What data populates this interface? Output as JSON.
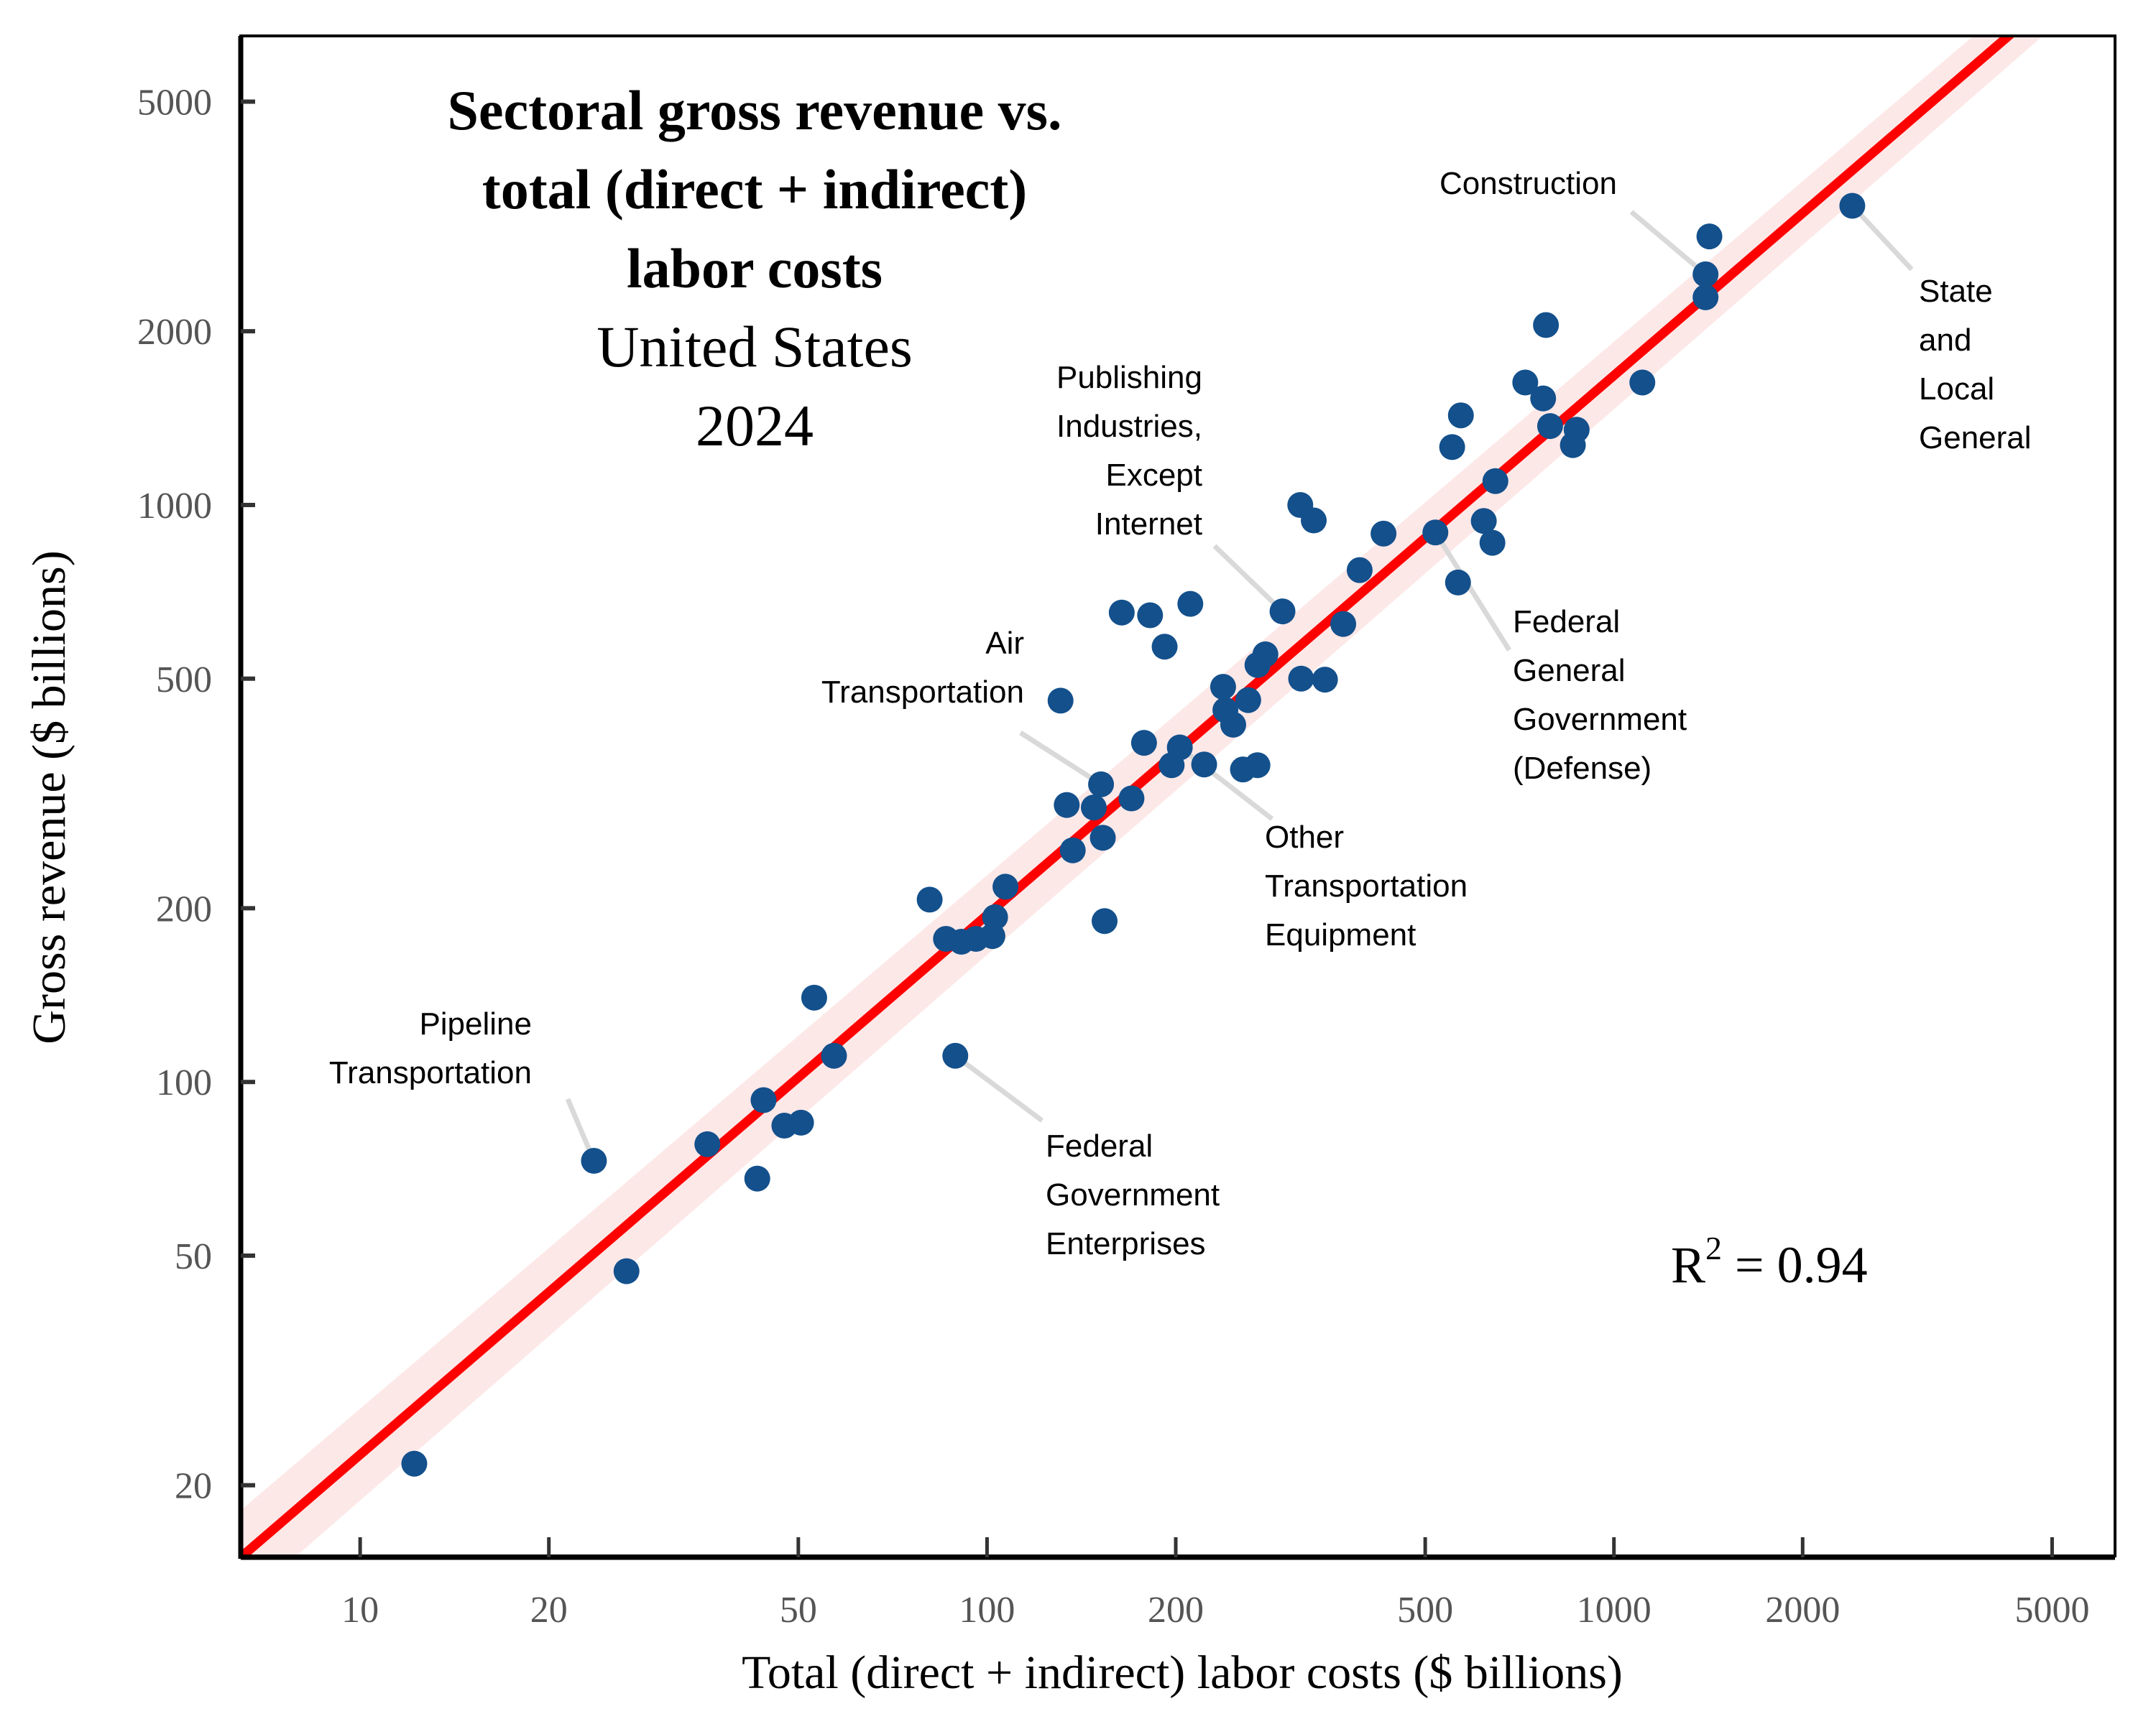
{
  "chart_data": {
    "type": "scatter",
    "title_lines": [
      "Sectoral gross revenue vs.",
      "total (direct + indirect)",
      "labor costs"
    ],
    "subtitle_lines": [
      "United States",
      "2024"
    ],
    "xlabel": "Total (direct + indirect) labor costs ($ billions)",
    "ylabel": "Gross revenue ($ billions)",
    "x_scale": "log",
    "y_scale": "log",
    "xlim": [
      6.45,
      6300
    ],
    "ylim": [
      15,
      6500
    ],
    "x_ticks": [
      10,
      20,
      50,
      100,
      200,
      500,
      1000,
      2000,
      5000
    ],
    "y_ticks": [
      20,
      50,
      100,
      200,
      500,
      1000,
      2000,
      5000
    ],
    "grid": false,
    "annotation_r2": {
      "label": "R",
      "sup": "2",
      "text": " = 0.94",
      "value": 0.94,
      "position": "bottom-right"
    },
    "fit_line": {
      "type": "log-log linear",
      "points": [
        [
          6.45,
          15
        ],
        [
          4260,
          6500
        ]
      ]
    },
    "colors": {
      "points": "#13508c",
      "fit": "#ff0000",
      "band": "#fde8e8",
      "leader": "#d9d9d9",
      "axis": "#000000",
      "tick_label": "#555555"
    },
    "points": [
      {
        "x": 12.2,
        "y": 21.8
      },
      {
        "x": 23.6,
        "y": 73,
        "label": "Pipeline Transportation"
      },
      {
        "x": 26.6,
        "y": 47
      },
      {
        "x": 35.8,
        "y": 78
      },
      {
        "x": 43,
        "y": 68
      },
      {
        "x": 44,
        "y": 93
      },
      {
        "x": 47.5,
        "y": 84
      },
      {
        "x": 50.5,
        "y": 85
      },
      {
        "x": 53,
        "y": 140
      },
      {
        "x": 57,
        "y": 111
      },
      {
        "x": 81,
        "y": 207
      },
      {
        "x": 86,
        "y": 177
      },
      {
        "x": 91,
        "y": 175
      },
      {
        "x": 96,
        "y": 177
      },
      {
        "x": 102,
        "y": 179
      },
      {
        "x": 103,
        "y": 193
      },
      {
        "x": 107,
        "y": 218
      },
      {
        "x": 89,
        "y": 111,
        "label": "Federal Government Enterprises"
      },
      {
        "x": 131,
        "y": 458
      },
      {
        "x": 134,
        "y": 302
      },
      {
        "x": 137,
        "y": 252
      },
      {
        "x": 148,
        "y": 299
      },
      {
        "x": 152,
        "y": 328,
        "label": "Air Transportation"
      },
      {
        "x": 153,
        "y": 265
      },
      {
        "x": 154,
        "y": 190
      },
      {
        "x": 164,
        "y": 651
      },
      {
        "x": 170,
        "y": 310
      },
      {
        "x": 178,
        "y": 387
      },
      {
        "x": 182,
        "y": 644
      },
      {
        "x": 192,
        "y": 568
      },
      {
        "x": 197,
        "y": 354
      },
      {
        "x": 203,
        "y": 380,
        "label": "Other Transportation Equipment"
      },
      {
        "x": 211,
        "y": 674
      },
      {
        "x": 222,
        "y": 355
      },
      {
        "x": 238,
        "y": 484
      },
      {
        "x": 240,
        "y": 441
      },
      {
        "x": 247,
        "y": 416
      },
      {
        "x": 256,
        "y": 348
      },
      {
        "x": 261,
        "y": 459
      },
      {
        "x": 270,
        "y": 528
      },
      {
        "x": 270,
        "y": 354
      },
      {
        "x": 278,
        "y": 551
      },
      {
        "x": 296,
        "y": 654,
        "label": "Publishing Industries, Except Internet"
      },
      {
        "x": 316,
        "y": 1000
      },
      {
        "x": 317,
        "y": 500
      },
      {
        "x": 332,
        "y": 940
      },
      {
        "x": 346,
        "y": 498
      },
      {
        "x": 370,
        "y": 622
      },
      {
        "x": 393,
        "y": 771
      },
      {
        "x": 429,
        "y": 892
      },
      {
        "x": 519,
        "y": 896,
        "label": "Federal General Government (Defense)"
      },
      {
        "x": 552,
        "y": 1260
      },
      {
        "x": 564,
        "y": 734
      },
      {
        "x": 570,
        "y": 1430
      },
      {
        "x": 620,
        "y": 938
      },
      {
        "x": 640,
        "y": 860
      },
      {
        "x": 647,
        "y": 1100
      },
      {
        "x": 722,
        "y": 1630
      },
      {
        "x": 771,
        "y": 1530
      },
      {
        "x": 779,
        "y": 2050
      },
      {
        "x": 791,
        "y": 1370
      },
      {
        "x": 860,
        "y": 1270
      },
      {
        "x": 872,
        "y": 1350
      },
      {
        "x": 1110,
        "y": 1630
      },
      {
        "x": 1400,
        "y": 2290
      },
      {
        "x": 1400,
        "y": 2510,
        "label": "Construction"
      },
      {
        "x": 1420,
        "y": 2920
      },
      {
        "x": 2400,
        "y": 3300,
        "label": "State and Local General"
      }
    ],
    "labels": [
      {
        "id": "pipeline",
        "lines": [
          "Pipeline",
          "Transportation"
        ],
        "anchor": "end",
        "target": "Pipeline Transportation"
      },
      {
        "id": "fedent",
        "lines": [
          "Federal",
          "Government",
          "Enterprises"
        ],
        "anchor": "start",
        "target": "Federal Government Enterprises"
      },
      {
        "id": "air",
        "lines": [
          "Air",
          "Transportation"
        ],
        "anchor": "end",
        "target": "Air Transportation"
      },
      {
        "id": "othertr",
        "lines": [
          "Other",
          "Transportation",
          "Equipment"
        ],
        "anchor": "start",
        "target": "Other Transportation Equipment"
      },
      {
        "id": "publishing",
        "lines": [
          "Publishing",
          "Industries,",
          "Except",
          "Internet"
        ],
        "anchor": "end",
        "target": "Publishing Industries, Except Internet"
      },
      {
        "id": "defense",
        "lines": [
          "Federal",
          "General",
          "Government",
          "(Defense)"
        ],
        "anchor": "start",
        "target": "Federal General Government (Defense)"
      },
      {
        "id": "construction",
        "lines": [
          "Construction"
        ],
        "anchor": "end",
        "target": "Construction"
      },
      {
        "id": "statelocal",
        "lines": [
          "State",
          "and",
          "Local",
          "General"
        ],
        "anchor": "start",
        "target": "State and Local General"
      }
    ]
  }
}
